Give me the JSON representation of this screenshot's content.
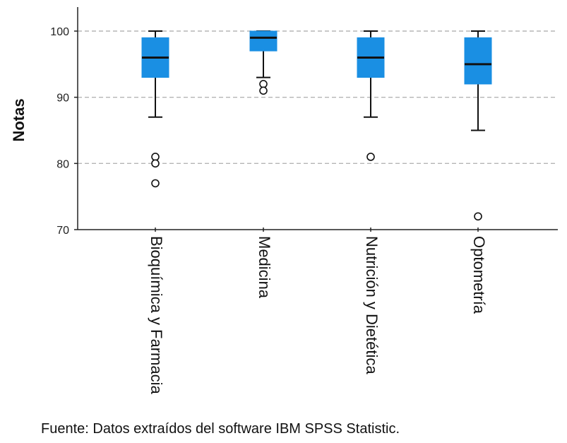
{
  "chart_data": {
    "type": "box",
    "ylabel": "Notas",
    "xlabel": "",
    "ylim": [
      70,
      100
    ],
    "yticks": [
      70,
      80,
      90,
      100
    ],
    "grid": "horizontal dashed at 80, 90, 100",
    "box_color": "#1a8fe3",
    "categories": [
      "Bioquímica y Farmacia",
      "Medicina",
      "Nutrición y Dietética",
      "Optometría"
    ],
    "boxes": [
      {
        "category": "Bioquímica y Farmacia",
        "whisker_low": 87,
        "q1": 93,
        "median": 96,
        "q3": 99,
        "whisker_high": 100,
        "outliers": [
          81,
          80,
          77
        ]
      },
      {
        "category": "Medicina",
        "whisker_low": 93,
        "q1": 97,
        "median": 99,
        "q3": 100,
        "whisker_high": 100,
        "outliers": [
          92,
          91
        ]
      },
      {
        "category": "Nutrición y Dietética",
        "whisker_low": 87,
        "q1": 93,
        "median": 96,
        "q3": 99,
        "whisker_high": 100,
        "outliers": [
          81
        ]
      },
      {
        "category": "Optometría",
        "whisker_low": 85,
        "q1": 92,
        "median": 95,
        "q3": 99,
        "whisker_high": 100,
        "outliers": [
          72
        ]
      }
    ]
  },
  "source_note": "Fuente: Datos extraídos del software IBM SPSS Statistic."
}
